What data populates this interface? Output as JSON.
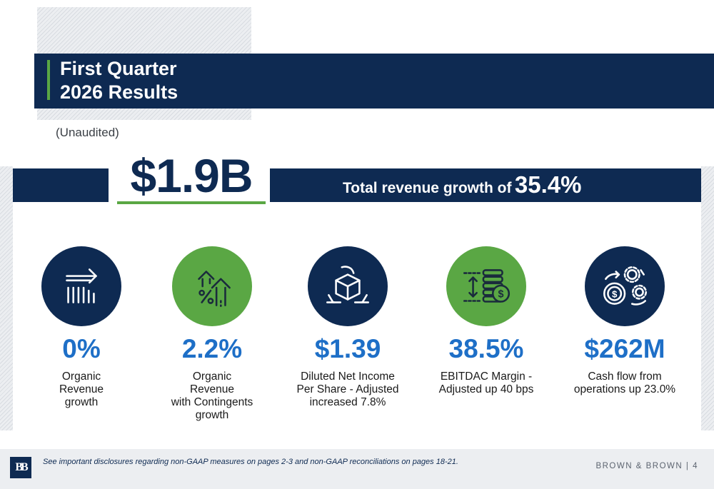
{
  "header": {
    "title_line1": "First Quarter",
    "title_line2": "2026 Results",
    "subtitle": "(Unaudited)"
  },
  "revenue": {
    "amount": "$1.9B",
    "growth_label": "Total revenue growth of",
    "growth_value": "35.4%"
  },
  "metrics": [
    {
      "icon": "arrow-bars-icon",
      "value": "0%",
      "desc": [
        "Organic",
        "Revenue",
        "growth"
      ]
    },
    {
      "icon": "percent-growth-arrows-icon",
      "value": "2.2%",
      "desc": [
        "Organic",
        "Revenue",
        "with Contingents",
        "growth"
      ]
    },
    {
      "icon": "hands-cube-icon",
      "value": "$1.39",
      "desc": [
        "Diluted Net Income",
        "Per Share - Adjusted",
        "increased 7.8%"
      ]
    },
    {
      "icon": "coin-stack-margin-icon",
      "value": "38.5%",
      "desc": [
        "EBITDAC Margin -",
        "Adjusted up 40 bps"
      ]
    },
    {
      "icon": "cash-gears-icon",
      "value": "$262M",
      "desc": [
        "Cash flow from",
        "operations up 23.0%"
      ]
    }
  ],
  "footer": {
    "logo_text": "BB",
    "disclosure": "See important disclosures regarding non-GAAP measures on pages 2-3 and non-GAAP reconciliations on pages 18-21.",
    "brand": "BROWN & BROWN",
    "separator": "|",
    "page_number": "4"
  },
  "colors": {
    "navy": "#0e2a52",
    "green": "#5aa744",
    "value_blue": "#1e6fc7"
  }
}
